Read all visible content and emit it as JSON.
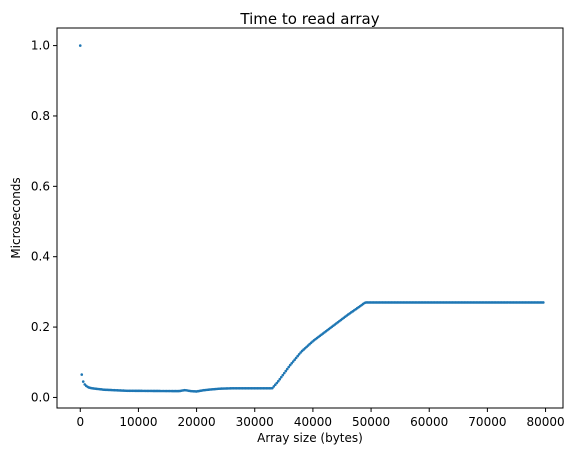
{
  "chart_data": {
    "type": "scatter",
    "title": "Time to read array",
    "xlabel": "Array size (bytes)",
    "ylabel": "Microseconds",
    "xlim": [
      -4000,
      83000
    ],
    "ylim": [
      -0.03,
      1.05
    ],
    "xticks": [
      0,
      10000,
      20000,
      30000,
      40000,
      50000,
      60000,
      70000,
      80000
    ],
    "xtick_labels": [
      "0",
      "10000",
      "20000",
      "30000",
      "40000",
      "50000",
      "60000",
      "70000",
      "80000"
    ],
    "yticks": [
      0.0,
      0.2,
      0.4,
      0.6,
      0.8,
      1.0
    ],
    "ytick_labels": [
      "0.0",
      "0.2",
      "0.4",
      "0.6",
      "0.8",
      "1.0"
    ],
    "grid": false,
    "color": "#1f77b4",
    "x_step": 256,
    "x_min": 0,
    "x_max": 79616,
    "segments": [
      {
        "x": [
          0,
          256,
          512,
          768,
          1024,
          1280,
          1536,
          2048,
          2560,
          3072,
          4096
        ],
        "y": [
          1.0,
          0.065,
          0.045,
          0.037,
          0.033,
          0.03,
          0.028,
          0.026,
          0.025,
          0.024,
          0.022
        ]
      },
      {
        "x": [
          4096,
          8000,
          17000,
          18000,
          19000,
          20000,
          21000,
          22000,
          24000,
          26000,
          33000
        ],
        "y": [
          0.022,
          0.019,
          0.018,
          0.021,
          0.018,
          0.017,
          0.02,
          0.022,
          0.025,
          0.026,
          0.026
        ]
      },
      {
        "x": [
          33000,
          34000,
          36000,
          38000,
          40000,
          42000,
          44000,
          46000,
          48000,
          49000
        ],
        "y": [
          0.026,
          0.045,
          0.09,
          0.13,
          0.16,
          0.185,
          0.21,
          0.235,
          0.258,
          0.27
        ]
      },
      {
        "x": [
          49000,
          79616
        ],
        "y": [
          0.27,
          0.27
        ]
      }
    ]
  }
}
